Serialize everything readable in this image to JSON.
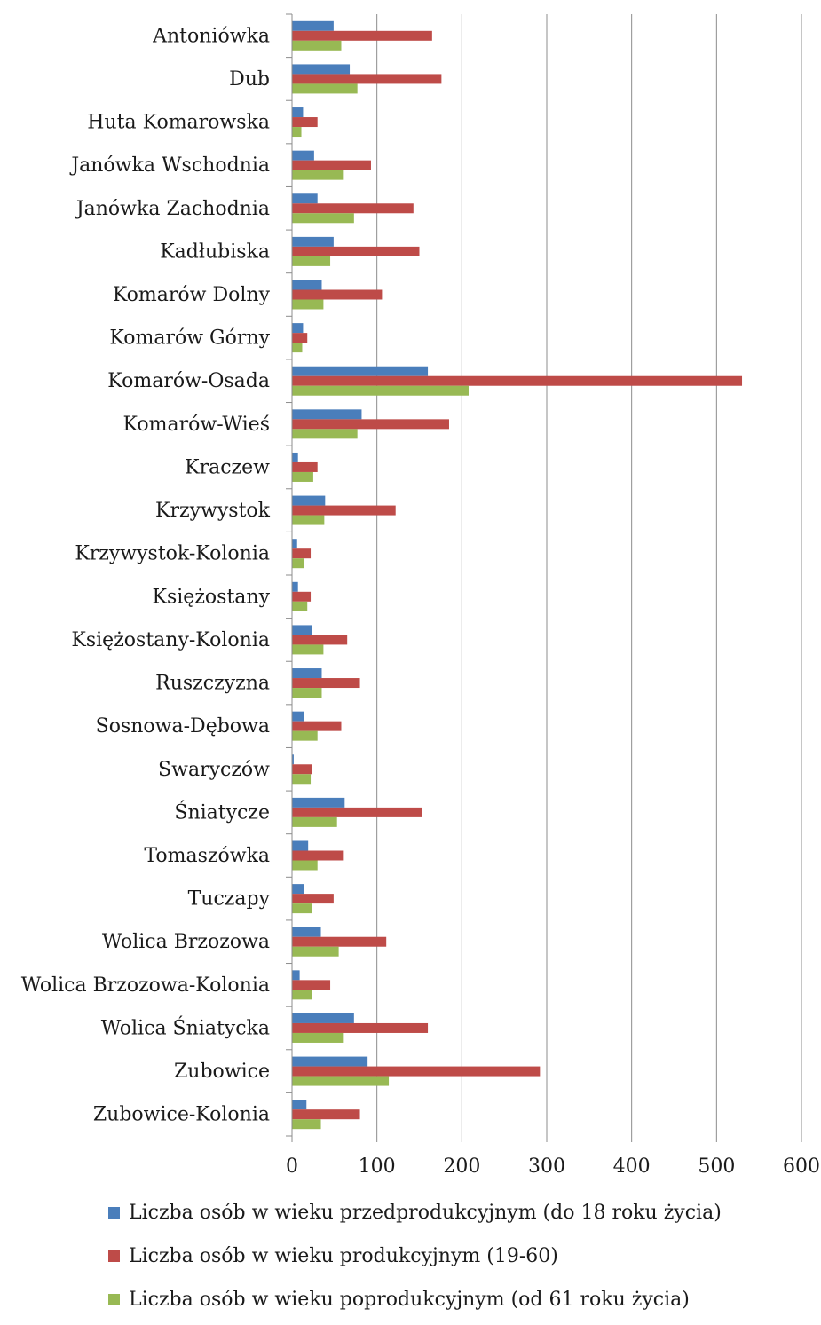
{
  "chart_data": {
    "type": "bar",
    "orientation": "horizontal",
    "categories": [
      "Antoniówka",
      "Dub",
      "Huta Komarowska",
      "Janówka Wschodnia",
      "Janówka Zachodnia",
      "Kadłubiska",
      "Komarów Dolny",
      "Komarów Górny",
      "Komarów-Osada",
      "Komarów-Wieś",
      "Kraczew",
      "Krzywystok",
      "Krzywystok-Kolonia",
      "Księżostany",
      "Księżostany-Kolonia",
      "Ruszczyzna",
      "Sosnowa-Dębowa",
      "Swaryczów",
      "Śniatycze",
      "Tomaszówka",
      "Tuczapy",
      "Wolica Brzozowa",
      "Wolica Brzozowa-Kolonia",
      "Wolica Śniatycka",
      "Zubowice",
      "Zubowice-Kolonia"
    ],
    "series": [
      {
        "name": "Liczba osób w wieku przedprodukcyjnym (do 18 roku życia)",
        "color": "#4a7ebb",
        "values": [
          49,
          68,
          13,
          26,
          30,
          49,
          35,
          13,
          160,
          82,
          7,
          39,
          6,
          7,
          23,
          35,
          14,
          2,
          62,
          19,
          14,
          34,
          9,
          73,
          89,
          17
        ]
      },
      {
        "name": "Liczba osób w wieku produkcyjnym (19-60)",
        "color": "#be4b48",
        "values": [
          165,
          176,
          30,
          93,
          143,
          150,
          106,
          18,
          530,
          185,
          30,
          122,
          22,
          22,
          65,
          80,
          58,
          24,
          153,
          61,
          49,
          111,
          45,
          160,
          292,
          80
        ]
      },
      {
        "name": "Liczba osób w wieku poprodukcyjnym (od 61 roku życia)",
        "color": "#98b954",
        "values": [
          58,
          77,
          11,
          61,
          73,
          45,
          37,
          12,
          208,
          77,
          25,
          38,
          14,
          18,
          37,
          35,
          30,
          22,
          53,
          30,
          23,
          55,
          24,
          61,
          114,
          34
        ]
      }
    ],
    "xlim": [
      0,
      600
    ],
    "x_ticks": [
      "0",
      "100",
      "200",
      "300",
      "400",
      "500",
      "600"
    ],
    "grid": "vertical",
    "legend": "bottom"
  }
}
